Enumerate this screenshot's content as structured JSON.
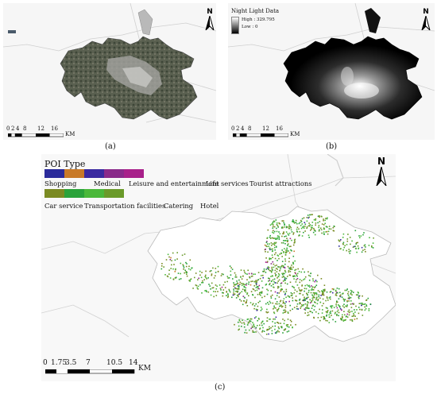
{
  "panels": {
    "a": {
      "caption": "(a)",
      "north_label": "N",
      "scale": {
        "ticks": [
          "0",
          "2",
          "4",
          "8",
          "12",
          "16"
        ],
        "unit": "KM"
      }
    },
    "b": {
      "caption": "(b)",
      "north_label": "N",
      "legend": {
        "title": "Night Light Data",
        "high": "High : 329.795",
        "low": "Low : 0"
      },
      "scale": {
        "ticks": [
          "0",
          "2",
          "4",
          "8",
          "12",
          "16"
        ],
        "unit": "KM"
      }
    },
    "c": {
      "caption": "(c)",
      "north_label": "N",
      "legend_title": "POI Type",
      "row1": [
        {
          "label": "Shopping",
          "color": "#2a2a9a"
        },
        {
          "label": "Medical",
          "color": "#c87a28"
        },
        {
          "label": "Leisure and entertainment",
          "color": "#3a2aa0"
        },
        {
          "label": "Life services",
          "color": "#8a2a8a"
        },
        {
          "label": "Tourist attractions",
          "color": "#a8208a"
        }
      ],
      "row2": [
        {
          "label": "Car service",
          "color": "#7a8a22"
        },
        {
          "label": "Transportation facilities",
          "color": "#2aa23a"
        },
        {
          "label": "Catering",
          "color": "#4ab83a"
        },
        {
          "label": "Hotel",
          "color": "#6a9a2a"
        }
      ],
      "scale": {
        "ticks": [
          "0",
          "1.75",
          "3.5",
          "7",
          "10.5",
          "14"
        ],
        "unit": "KM"
      }
    }
  }
}
